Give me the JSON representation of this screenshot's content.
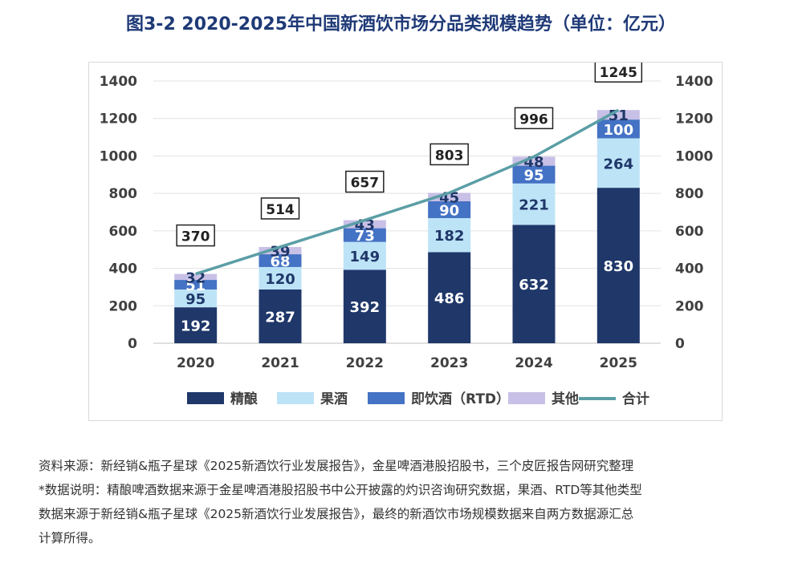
{
  "title": "图3-2 2020-2025年中国新酒饮市场分品类规模趋势（单位：亿元）",
  "chart_data": {
    "type": "bar",
    "stacked": true,
    "categories": [
      "2020",
      "2021",
      "2022",
      "2023",
      "2024",
      "2025"
    ],
    "series": [
      {
        "name": "精酿",
        "color": "#1f3769",
        "values": [
          192,
          287,
          392,
          486,
          632,
          830
        ]
      },
      {
        "name": "果酒",
        "color": "#bde3f7",
        "values": [
          95,
          120,
          149,
          182,
          221,
          264
        ]
      },
      {
        "name": "即饮酒（RTD）",
        "color": "#4472c4",
        "values": [
          51,
          68,
          73,
          90,
          95,
          100
        ]
      },
      {
        "name": "其他",
        "color": "#c8c0e6",
        "values": [
          32,
          39,
          43,
          45,
          48,
          51
        ]
      }
    ],
    "line": {
      "name": "合计",
      "color": "#5b9ea6",
      "values": [
        370,
        514,
        657,
        803,
        996,
        1245
      ]
    },
    "ylim": [
      0,
      1400
    ],
    "yticks": [
      0,
      200,
      400,
      600,
      800,
      1000,
      1200,
      1400
    ],
    "legend_position": "bottom"
  },
  "notes": {
    "source": "资料来源：新经销&瓶子星球《2025新酒饮行业发展报告》，金星啤酒港股招股书，三个皮匠报告网研究整理",
    "line1": "*数据说明：精酿啤酒数据来源于金星啤酒港股招股书中公开披露的灼识咨询研究数据，果酒、RTD等其他类型",
    "line2": "数据来源于新经销&瓶子星球《2025新酒饮行业发展报告》，最终的新酒饮市场规模数据来自两方数据源汇总",
    "line3": "计算所得。"
  }
}
